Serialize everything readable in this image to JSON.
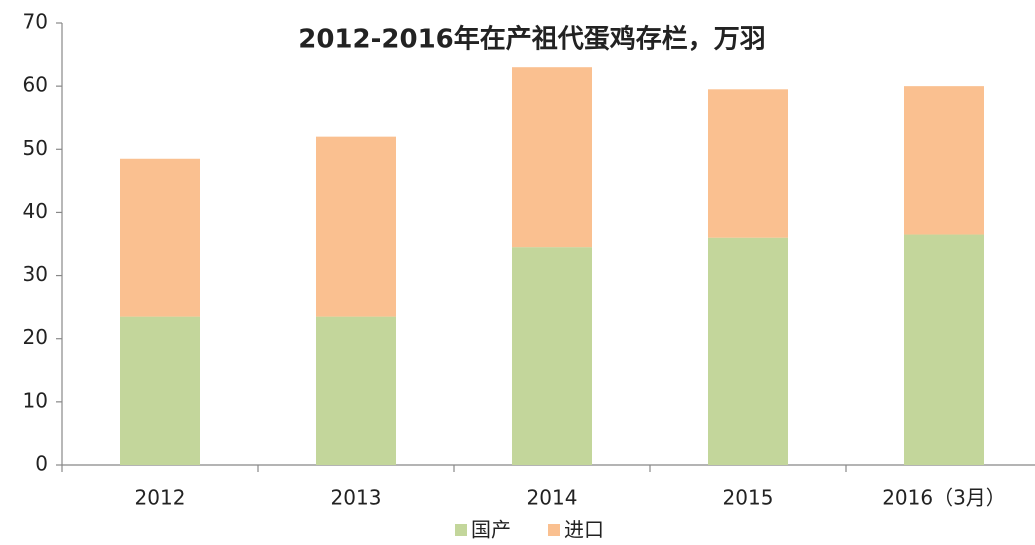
{
  "chart_data": {
    "type": "stacked_bar",
    "title": "2012-2016年在产祖代蛋鸡存栏，万羽",
    "categories": [
      "2012",
      "2013",
      "2014",
      "2015",
      "2016（3月）"
    ],
    "series": [
      {
        "name": "国产",
        "color": "#c3d69b",
        "values": [
          23.5,
          23.5,
          34.5,
          36,
          36.5
        ]
      },
      {
        "name": "进口",
        "color": "#fac090",
        "values": [
          25,
          28.5,
          28.5,
          23.5,
          23.5
        ]
      }
    ],
    "ylim": [
      0,
      70
    ],
    "yticks": [
      0,
      10,
      20,
      30,
      40,
      50,
      60,
      70
    ],
    "grid": false,
    "legend": "bottom"
  }
}
